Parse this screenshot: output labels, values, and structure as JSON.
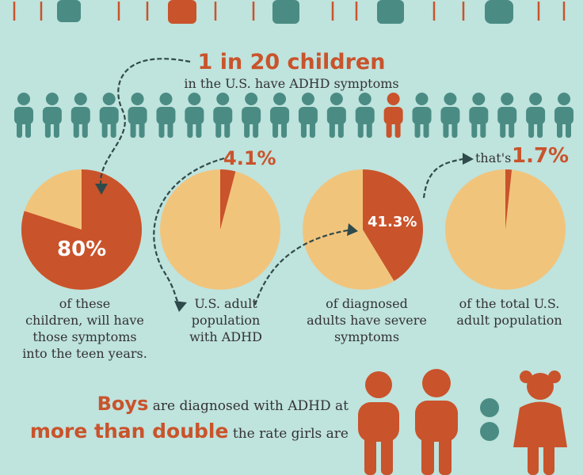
{
  "headline": "1 in 20 children",
  "subline": "in the U.S. have ADHD symptoms",
  "people_row": {
    "total": 20,
    "highlighted_index": 13
  },
  "colors": {
    "background": "#bfe3dd",
    "teal": "#4a8c84",
    "orange": "#c9532b",
    "tan": "#f1c47c",
    "arrow": "#2f4a4a"
  },
  "pies": [
    {
      "label": "80%",
      "value_pct": 80,
      "caption": [
        "of these",
        "children, will have",
        "those symptoms",
        "into the teen years."
      ]
    },
    {
      "label": "4.1%",
      "value_pct": 4.1,
      "caption": [
        "U.S. adult",
        "population",
        "with ADHD"
      ]
    },
    {
      "label": "41.3%",
      "value_pct": 41.3,
      "caption": [
        "of diagnosed",
        "adults have severe",
        "symptoms"
      ]
    },
    {
      "prefix": "that's",
      "label": "1.7%",
      "value_pct": 1.7,
      "caption": [
        "of the total U.S.",
        "adult population"
      ]
    }
  ],
  "boys_text": {
    "strong1": "Boys",
    "rest1": " are diagnosed with ADHD at",
    "strong2": "more than double",
    "rest2": " the rate girls are"
  },
  "ratio_icons": [
    "boy-icon",
    "boy-icon",
    "colon-icon",
    "girl-icon"
  ]
}
